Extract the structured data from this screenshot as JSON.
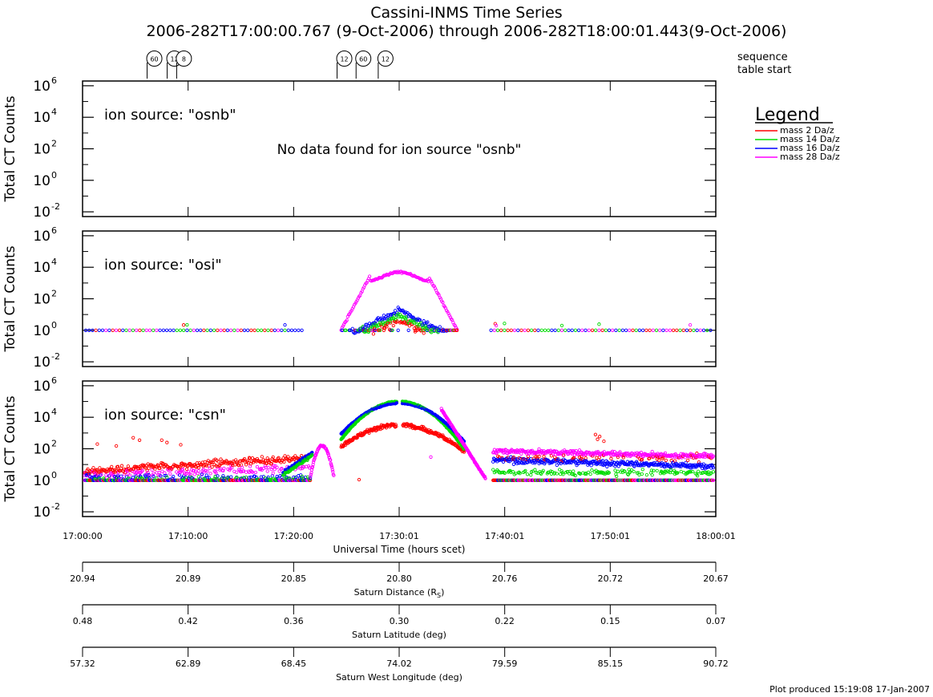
{
  "chart_data": {
    "type": "scatter",
    "title": "Cassini-INMS Time Series",
    "subtitle": "2006-282T17:00:00.767 (9-Oct-2006) through 2006-282T18:00:01.443(9-Oct-2006)",
    "sequence_label_line1": "sequence",
    "sequence_label_line2": "table start",
    "sequence_markers": [
      {
        "label": "60",
        "time_min": 6.8
      },
      {
        "label": "12",
        "time_min": 8.7
      },
      {
        "label": "8",
        "time_min": 9.6
      },
      {
        "label": "12",
        "time_min": 24.8
      },
      {
        "label": "60",
        "time_min": 26.6
      },
      {
        "label": "12",
        "time_min": 28.7
      }
    ],
    "legend": {
      "title": "Legend",
      "position": "right",
      "entries": [
        {
          "label": "mass  2 Da/z",
          "color": "#ff0000"
        },
        {
          "label": "mass 14 Da/z",
          "color": "#00dd00"
        },
        {
          "label": "mass 16 Da/z",
          "color": "#0000ff"
        },
        {
          "label": "mass 28 Da/z",
          "color": "#ff00ff"
        }
      ]
    },
    "ylabel": "Total CT Counts",
    "y_scale": "log",
    "ylim": [
      0.005,
      2000000
    ],
    "y_ticks": [
      {
        "value": 1000000.0,
        "base": "10",
        "exp": "6"
      },
      {
        "value": 10000.0,
        "base": "10",
        "exp": "4"
      },
      {
        "value": 100.0,
        "base": "10",
        "exp": "2"
      },
      {
        "value": 1.0,
        "base": "10",
        "exp": "0"
      },
      {
        "value": 0.01,
        "base": "10",
        "exp": "-2"
      }
    ],
    "panels": [
      {
        "ion_source_label": "ion source: \"osnb\"",
        "message": "No data found for ion source \"osnb\"",
        "has_data": false
      },
      {
        "ion_source_label": "ion source: \"osi\"",
        "message": "",
        "has_data": true
      },
      {
        "ion_source_label": "ion source: \"csn\"",
        "message": "",
        "has_data": true
      }
    ],
    "xlabel": "Universal Time (hours scet)",
    "x_tick_labels": [
      "17:00:00",
      "17:10:00",
      "17:20:00",
      "17:30:01",
      "17:40:01",
      "17:50:01",
      "18:00:01"
    ],
    "aux_axes": [
      {
        "label": "Saturn Distance (R",
        "label_sub": "S",
        "label_end": ")",
        "ticks": [
          "20.94",
          "20.89",
          "20.85",
          "20.80",
          "20.76",
          "20.72",
          "20.67"
        ]
      },
      {
        "label": "Saturn Latitude (deg)",
        "label_sub": "",
        "label_end": "",
        "ticks": [
          "0.48",
          "0.42",
          "0.36",
          "0.30",
          "0.22",
          "0.15",
          "0.07"
        ]
      },
      {
        "label": "Saturn West Longitude (deg)",
        "label_sub": "",
        "label_end": "",
        "ticks": [
          "57.32",
          "62.89",
          "68.45",
          "74.02",
          "79.59",
          "85.15",
          "90.72"
        ]
      }
    ],
    "footer": "Plot produced 15:19:08 17-Jan-2007"
  }
}
